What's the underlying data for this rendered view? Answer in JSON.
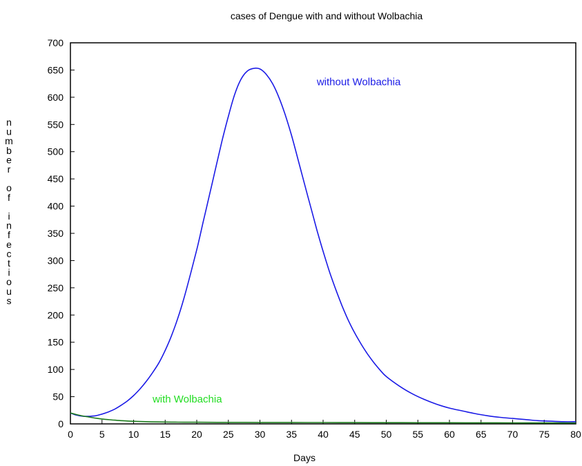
{
  "chart_data": {
    "type": "line",
    "title": "cases of Dengue with and without Wolbachia",
    "xlabel": "Days",
    "ylabel": "number of infectious",
    "xlim": [
      0,
      80
    ],
    "ylim": [
      0,
      700
    ],
    "x_ticks": [
      0,
      5,
      10,
      15,
      20,
      25,
      30,
      35,
      40,
      45,
      50,
      55,
      60,
      65,
      70,
      75,
      80
    ],
    "y_ticks": [
      0,
      50,
      100,
      150,
      200,
      250,
      300,
      350,
      400,
      450,
      500,
      550,
      600,
      650,
      700
    ],
    "grid": false,
    "series": [
      {
        "name": "without Wolbachia",
        "color": "#1a1ae6",
        "x": [
          0,
          1,
          2,
          3,
          4,
          5,
          6,
          7,
          8,
          9,
          10,
          11,
          12,
          13,
          14,
          15,
          16,
          17,
          18,
          19,
          20,
          21,
          22,
          23,
          24,
          25,
          26,
          27,
          28,
          29,
          30,
          31,
          32,
          33,
          34,
          35,
          36,
          37,
          38,
          39,
          40,
          41,
          42,
          43,
          44,
          45,
          46,
          47,
          48,
          49,
          50,
          52,
          54,
          56,
          58,
          60,
          62,
          64,
          66,
          68,
          70,
          72,
          74,
          76,
          78,
          80
        ],
        "y": [
          20,
          16,
          14,
          14,
          15,
          18,
          22,
          27,
          34,
          42,
          52,
          64,
          78,
          94,
          112,
          135,
          162,
          194,
          232,
          275,
          320,
          370,
          420,
          470,
          520,
          565,
          605,
          633,
          648,
          653,
          652,
          642,
          625,
          600,
          568,
          530,
          487,
          443,
          400,
          357,
          317,
          280,
          247,
          217,
          190,
          167,
          147,
          129,
          113,
          99,
          87,
          70,
          56,
          45,
          36,
          29,
          24,
          19,
          15,
          12,
          10,
          8,
          6,
          5,
          4,
          4
        ]
      },
      {
        "name": "with Wolbachia",
        "color": "#1a7a1a",
        "x": [
          0,
          1,
          2,
          3,
          4,
          5,
          6,
          7,
          8,
          9,
          10,
          12,
          14,
          16,
          18,
          20,
          25,
          30,
          35,
          40,
          45,
          50,
          55,
          60,
          65,
          70,
          75,
          80
        ],
        "y": [
          20,
          17,
          14.5,
          12.5,
          10.5,
          9,
          7.8,
          6.8,
          6,
          5.3,
          4.8,
          4,
          3.6,
          3.3,
          3.1,
          3,
          2.8,
          2.7,
          2.6,
          2.5,
          2.4,
          2.3,
          2.2,
          2.1,
          2.0,
          1.9,
          1.8,
          1.7
        ]
      }
    ],
    "annotations": [
      {
        "text": "without Wolbachia",
        "color": "#1a1ae6",
        "x": 39,
        "y": 622
      },
      {
        "text": "with Wolbachia",
        "color": "#22dd22",
        "x": 13,
        "y": 39
      }
    ]
  }
}
